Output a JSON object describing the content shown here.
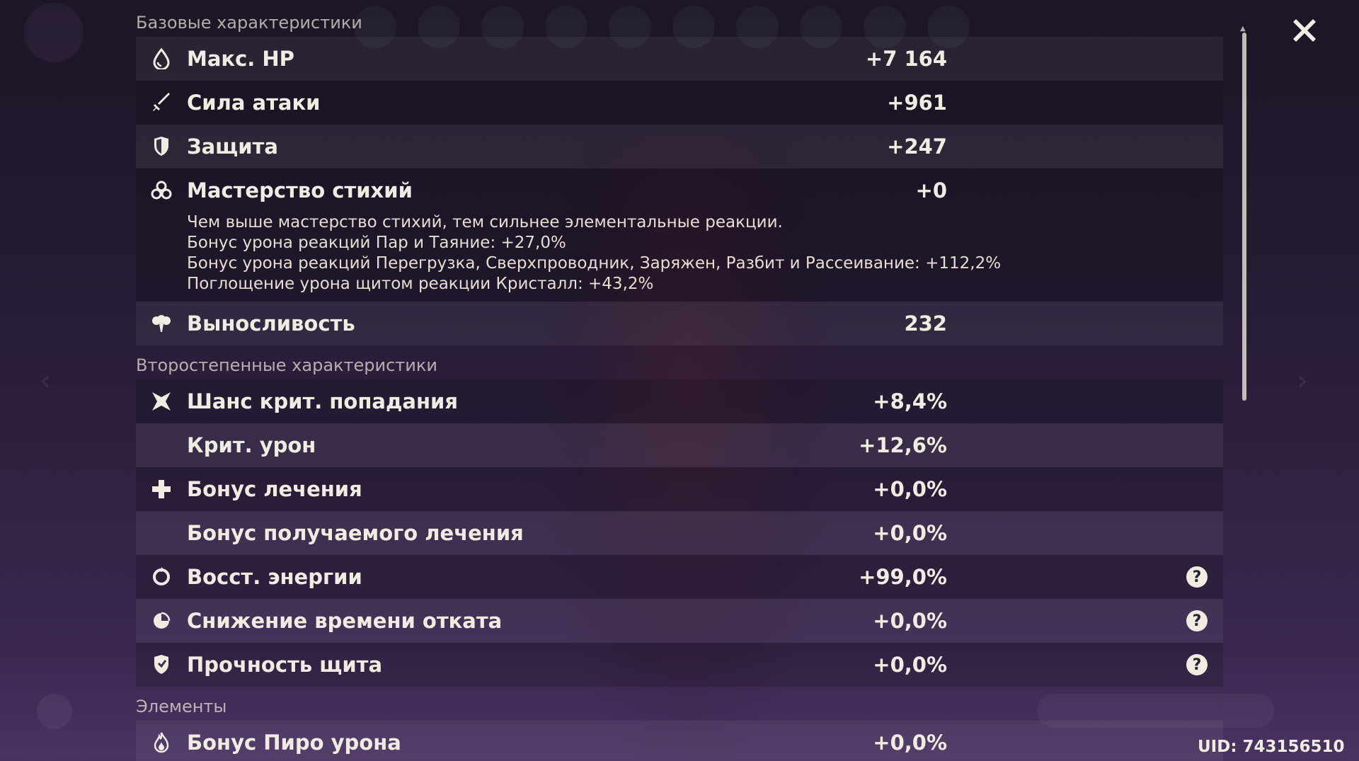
{
  "sections": {
    "base_title": "Базовые характеристики",
    "secondary_title": "Второстепенные характеристики",
    "elements_title": "Элементы"
  },
  "base": {
    "hp": {
      "label": "Макс. HP",
      "value": "+7 164"
    },
    "atk": {
      "label": "Сила атаки",
      "value": "+961"
    },
    "def": {
      "label": "Защита",
      "value": "+247"
    },
    "em": {
      "label": "Мастерство стихий",
      "value": "+0",
      "desc": [
        "Чем выше мастерство стихий, тем сильнее элементальные реакции.",
        "Бонус урона реакций Пар и Таяние: +27,0%",
        "Бонус урона реакций Перегрузка, Сверхпроводник, Заряжен, Разбит и Рассеивание: +112,2%",
        "Поглощение урона щитом реакции Кристалл: +43,2%"
      ]
    },
    "stamina": {
      "label": "Выносливость",
      "value": "232"
    }
  },
  "secondary": {
    "crit_rate": {
      "label": "Шанс крит. попадания",
      "value": "+8,4%"
    },
    "crit_dmg": {
      "label": "Крит. урон",
      "value": "+12,6%"
    },
    "heal": {
      "label": "Бонус лечения",
      "value": "+0,0%"
    },
    "incoming_heal": {
      "label": "Бонус получаемого лечения",
      "value": "+0,0%"
    },
    "er": {
      "label": "Восст. энергии",
      "value": "+99,0%"
    },
    "cdr": {
      "label": "Снижение времени отката",
      "value": "+0,0%"
    },
    "shield": {
      "label": "Прочность щита",
      "value": "+0,0%"
    }
  },
  "elements": {
    "pyro": {
      "label": "Бонус Пиро урона",
      "value": "+0,0%"
    }
  },
  "help_glyph": "?",
  "uid": "UID: 743156510"
}
